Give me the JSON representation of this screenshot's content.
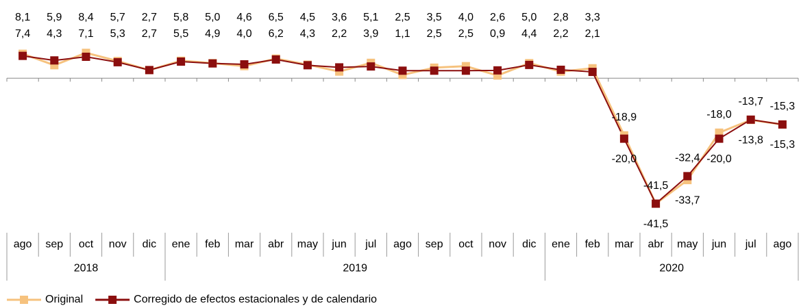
{
  "chart_data": {
    "type": "line",
    "groups": [
      {
        "label": "2018",
        "categories": [
          "ago",
          "sep",
          "oct",
          "nov",
          "dic"
        ]
      },
      {
        "label": "2019",
        "categories": [
          "ene",
          "feb",
          "mar",
          "abr",
          "may",
          "jun",
          "jul",
          "ago",
          "sep",
          "oct",
          "nov",
          "dic"
        ]
      },
      {
        "label": "2020",
        "categories": [
          "ene",
          "feb",
          "mar",
          "abr",
          "may",
          "jun",
          "jul",
          "ago"
        ]
      }
    ],
    "series": [
      {
        "name": "Original",
        "color": "#f6c27e",
        "values": [
          8.1,
          4.3,
          8.4,
          5.7,
          2.7,
          5.8,
          5.0,
          4.0,
          6.5,
          4.5,
          2.2,
          5.1,
          1.1,
          3.5,
          4.0,
          0.9,
          5.0,
          2.2,
          3.3,
          -18.9,
          -41.5,
          -33.7,
          -18.0,
          -13.8,
          -15.3
        ],
        "value_labels": [
          "8,1",
          "4,3",
          "8,4",
          "5,7",
          "2,7",
          "5,8",
          "5,0",
          "4,0",
          "6,5",
          "4,5",
          "2,2",
          "5,1",
          "1,1",
          "3,5",
          "4,0",
          "0,9",
          "5,0",
          "2,2",
          "3,3",
          "-18,9",
          "-41,5",
          "-33,7",
          "-18,0",
          "-13,8",
          "-15,3"
        ]
      },
      {
        "name": "Corregido de efectos estacionales y de calendario",
        "color": "#8b0e0e",
        "values": [
          7.4,
          5.9,
          7.1,
          5.3,
          2.7,
          5.5,
          4.9,
          4.6,
          6.2,
          4.3,
          3.6,
          3.9,
          2.5,
          2.5,
          2.5,
          2.6,
          4.4,
          2.8,
          2.1,
          -20.0,
          -41.5,
          -32.4,
          -20.0,
          -13.7,
          -15.3
        ],
        "value_labels": [
          "7,4",
          "5,9",
          "7,1",
          "5,3",
          "2,7",
          "5,5",
          "4,9",
          "4,6",
          "6,2",
          "4,3",
          "3,6",
          "3,9",
          "2,5",
          "2,5",
          "2,5",
          "2,6",
          "4,4",
          "2,8",
          "2,1",
          "-20,0",
          "-41,5",
          "-32,4",
          "-20,0",
          "-13,7",
          "-15,3"
        ]
      }
    ],
    "ylim": [
      -45,
      20
    ],
    "legend": "bottom-left"
  }
}
